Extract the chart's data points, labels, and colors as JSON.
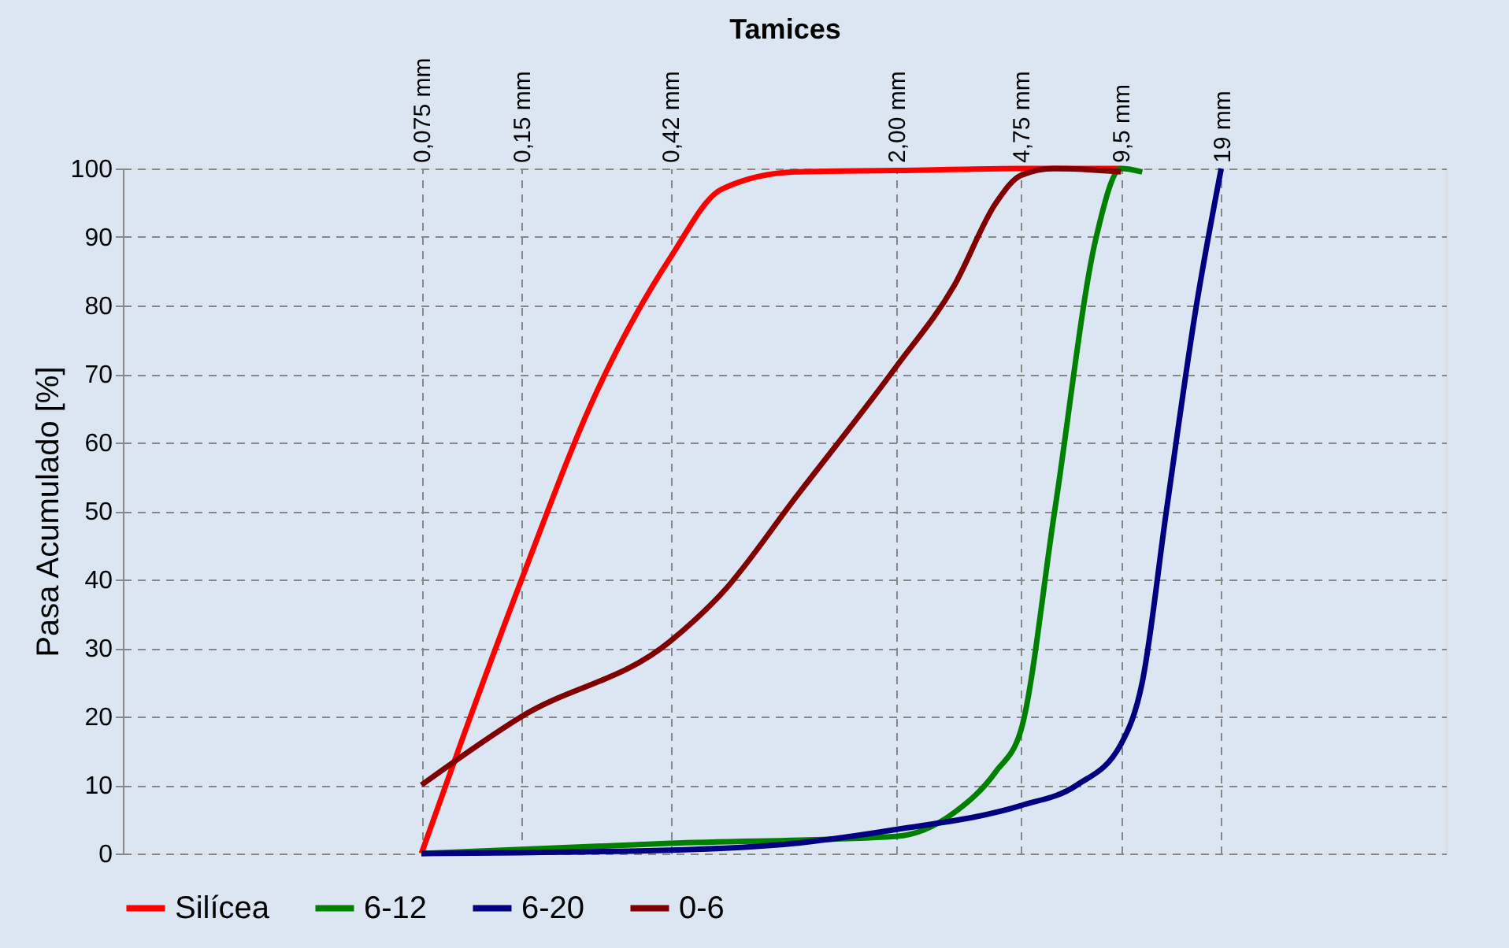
{
  "chart_data": {
    "type": "line",
    "xlabel": "Tamices",
    "ylabel": "Pasa Acumulado [%]",
    "log": "x",
    "xlim": [
      0.0095,
      90
    ],
    "ylim": [
      0,
      100
    ],
    "xticks": [
      {
        "value": 0.075,
        "label": "0,075  mm"
      },
      {
        "value": 0.15,
        "label": "0,15  mm"
      },
      {
        "value": 0.42,
        "label": "0,42  mm"
      },
      {
        "value": 2,
        "label": "2,00 mm"
      },
      {
        "value": 4.75,
        "label": "4,75 mm"
      },
      {
        "value": 9.5,
        "label": "9,5 mm"
      },
      {
        "value": 19,
        "label": "19 mm"
      }
    ],
    "yticks": [
      0,
      10,
      20,
      30,
      40,
      50,
      60,
      70,
      80,
      90,
      100
    ],
    "grid": true,
    "legend": "bottom",
    "marker": "none",
    "line_style": "solid",
    "series": [
      {
        "name": "Silícea",
        "color": "#ff0000",
        "x": [
          0.075,
          0.1,
          0.15,
          0.25,
          0.42,
          0.6,
          1,
          2,
          4.75,
          9.5
        ],
        "values": [
          0,
          17,
          40,
          67,
          87,
          97,
          99.5,
          99.7,
          100,
          100
        ]
      },
      {
        "name": "6-12",
        "color": "#008000",
        "x": [
          0.075,
          0.42,
          2,
          3,
          4,
          4.75,
          6,
          8,
          9.5,
          11
        ],
        "values": [
          0,
          1.5,
          2.5,
          6,
          12,
          18,
          50,
          90,
          100,
          99.5
        ]
      },
      {
        "name": "6-20",
        "color": "#000080",
        "x": [
          0.075,
          0.42,
          1,
          2,
          4.75,
          7,
          9.5,
          11,
          13,
          16,
          19
        ],
        "values": [
          0,
          0.5,
          1.5,
          3.5,
          7,
          10,
          16,
          25,
          50,
          80,
          100
        ]
      },
      {
        "name": "0-6",
        "color": "#800000",
        "x": [
          0.075,
          0.15,
          0.42,
          0.6,
          1,
          2,
          3,
          4,
          4.75,
          6,
          9.5
        ],
        "values": [
          10,
          20,
          31,
          38,
          52,
          71,
          83,
          95,
          99,
          100,
          99.5
        ]
      }
    ]
  }
}
